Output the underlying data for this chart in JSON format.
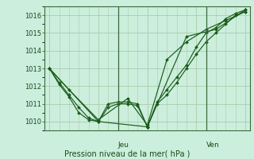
{
  "bg_color": "#cceedd",
  "plot_bg_color": "#cceedd",
  "grid_color": "#aaccaa",
  "line_color": "#1a5c1a",
  "marker_color": "#1a5c1a",
  "ylim": [
    1009.5,
    1016.5
  ],
  "yticks": [
    1010,
    1011,
    1012,
    1013,
    1014,
    1015,
    1016
  ],
  "xlabel": "Pression niveau de la mer( hPa )",
  "jeu_label": "Jeu",
  "ven_label": "Ven",
  "series": [
    {
      "x": [
        0,
        1,
        2,
        3,
        4,
        5,
        6,
        7,
        8,
        9,
        10,
        11,
        12,
        13,
        14,
        15,
        16,
        17,
        18,
        19,
        20
      ],
      "y": [
        1013.0,
        1012.2,
        1011.5,
        1010.8,
        1010.2,
        1010.0,
        1010.8,
        1011.0,
        1011.0,
        1010.9,
        1009.7,
        1011.0,
        1011.5,
        1012.2,
        1013.0,
        1013.8,
        1014.5,
        1015.0,
        1015.5,
        1016.0,
        1016.2
      ]
    },
    {
      "x": [
        0,
        1,
        2,
        3,
        4,
        5,
        6,
        7,
        8,
        9,
        10,
        11,
        12,
        13,
        14,
        15,
        16,
        17,
        18,
        19,
        20
      ],
      "y": [
        1013.0,
        1012.1,
        1011.4,
        1010.5,
        1010.1,
        1010.0,
        1011.0,
        1011.1,
        1011.1,
        1011.0,
        1009.7,
        1011.1,
        1011.8,
        1012.5,
        1013.2,
        1014.2,
        1015.0,
        1015.3,
        1015.8,
        1016.1,
        1016.3
      ]
    },
    {
      "x": [
        0,
        2,
        5,
        8,
        10,
        12,
        14,
        16,
        18,
        20
      ],
      "y": [
        1013.0,
        1011.8,
        1010.1,
        1011.3,
        1009.8,
        1013.5,
        1014.5,
        1015.2,
        1015.7,
        1016.2
      ]
    },
    {
      "x": [
        0,
        5,
        10,
        14,
        17,
        20
      ],
      "y": [
        1013.0,
        1010.0,
        1009.7,
        1014.8,
        1015.2,
        1016.3
      ]
    }
  ],
  "jeu_x": 7,
  "ven_x": 16,
  "xlim": [
    -0.5,
    20.5
  ],
  "xticks_minor": 20
}
